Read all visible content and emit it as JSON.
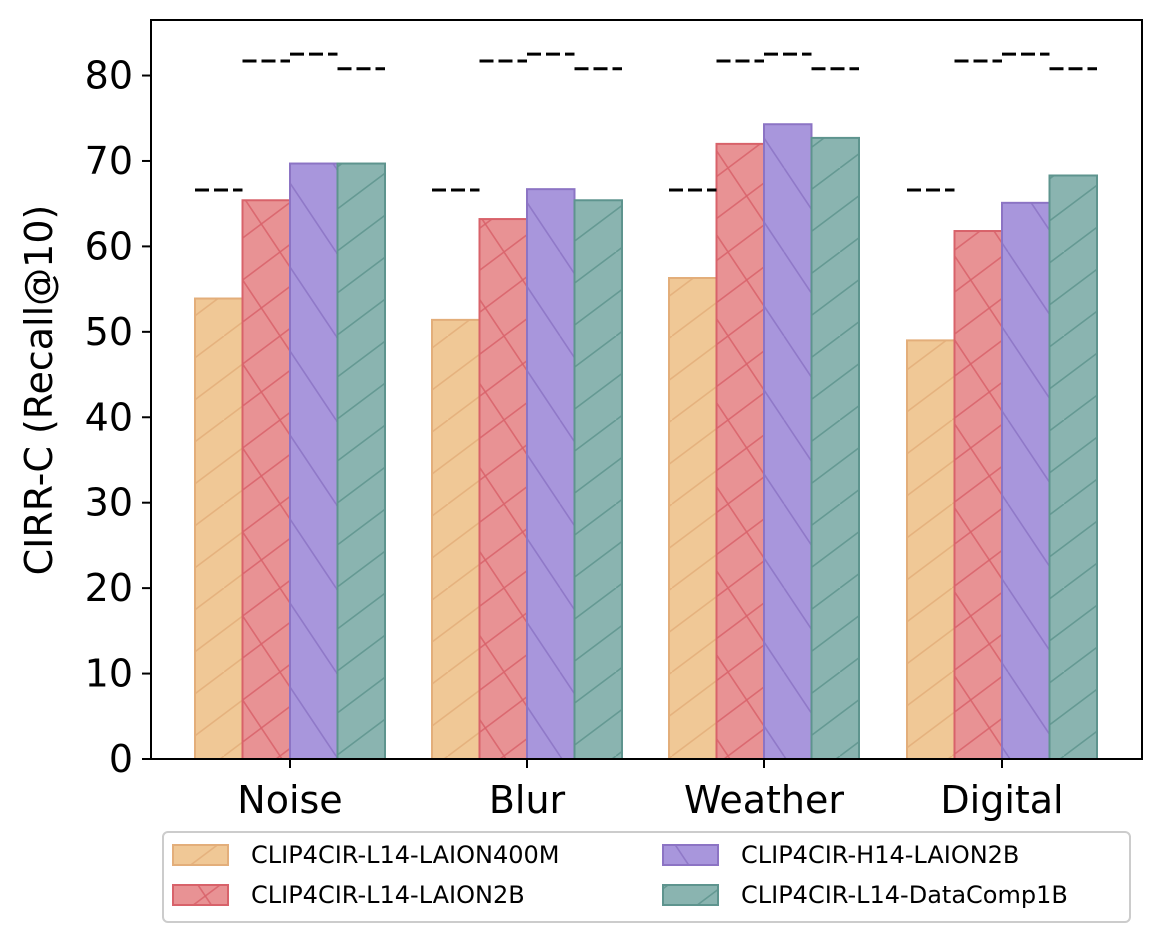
{
  "chart_data": {
    "type": "bar",
    "title": "",
    "xlabel": "",
    "ylabel": "CIRR-C (Recall@10)",
    "ylim": [
      0,
      86.5
    ],
    "yticks": [
      0,
      10,
      20,
      30,
      40,
      50,
      60,
      70,
      80
    ],
    "categories": [
      "Noise",
      "Blur",
      "Weather",
      "Digital"
    ],
    "series": [
      {
        "name": "CLIP4CIR-L14-LAION400M",
        "values": [
          53.9,
          51.4,
          56.3,
          49.0
        ],
        "color": "#f0c896",
        "edge": "#e3ae7a",
        "hatch": "/",
        "clean_reference": 66.6
      },
      {
        "name": "CLIP4CIR-L14-LAION2B",
        "values": [
          65.4,
          63.2,
          72.0,
          61.8
        ],
        "color": "#e89294",
        "edge": "#d8626a",
        "hatch": "x",
        "clean_reference": 81.7
      },
      {
        "name": "CLIP4CIR-H14-LAION2B",
        "values": [
          69.7,
          66.7,
          74.3,
          65.1
        ],
        "color": "#a896dc",
        "edge": "#8c74c4",
        "hatch": "\\",
        "clean_reference": 82.5
      },
      {
        "name": "CLIP4CIR-L14-DataComp1B",
        "values": [
          69.7,
          65.4,
          72.7,
          68.3
        ],
        "color": "#8ab4b0",
        "edge": "#5e948e",
        "hatch": "/",
        "clean_reference": 80.8
      }
    ],
    "reference_lines": "dashed black lines marking each series' clean score",
    "grid": false,
    "legend_placement": "bottom, below plot, two columns"
  }
}
